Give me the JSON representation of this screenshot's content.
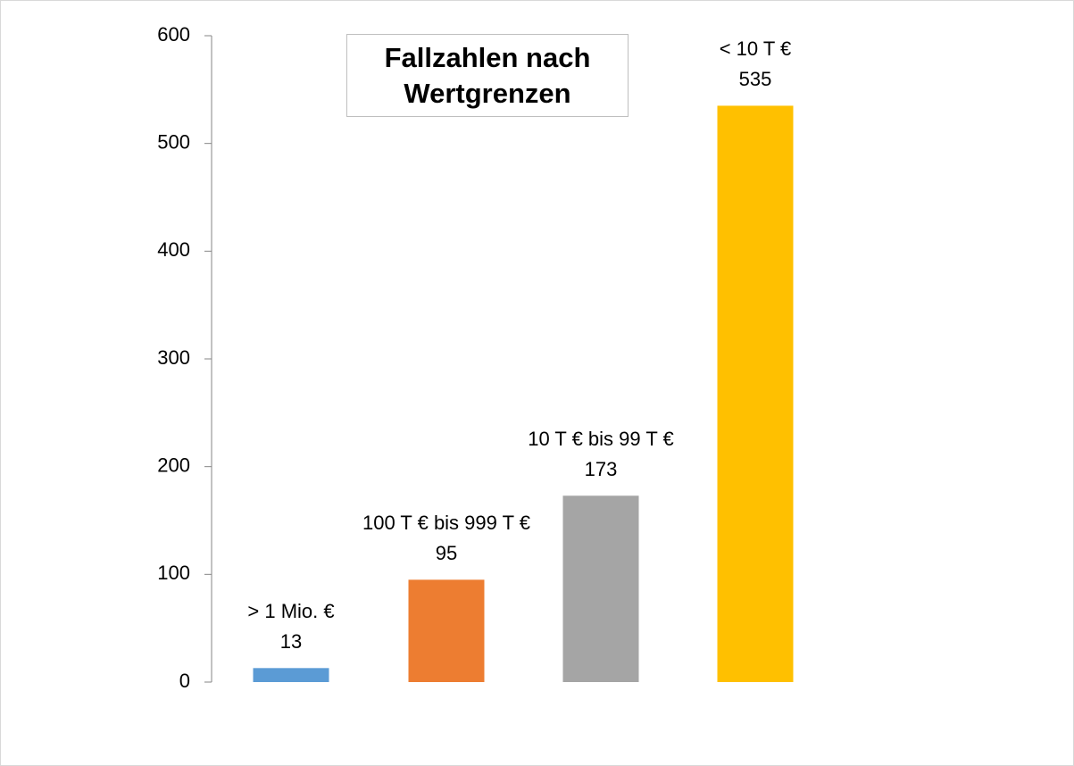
{
  "chart_data": {
    "type": "bar",
    "title": "Fallzahlen nach Wertgrenzen",
    "categories": [
      "> 1 Mio. €",
      "100 T € bis 999 T €",
      "10 T € bis 99 T €",
      "< 10 T €"
    ],
    "values": [
      13,
      95,
      173,
      535
    ],
    "colors": [
      "#5b9bd5",
      "#ed7d31",
      "#a5a5a5",
      "#ffc000"
    ],
    "ylim": [
      0,
      600
    ],
    "yticks": [
      0,
      100,
      200,
      300,
      400,
      500,
      600
    ]
  }
}
